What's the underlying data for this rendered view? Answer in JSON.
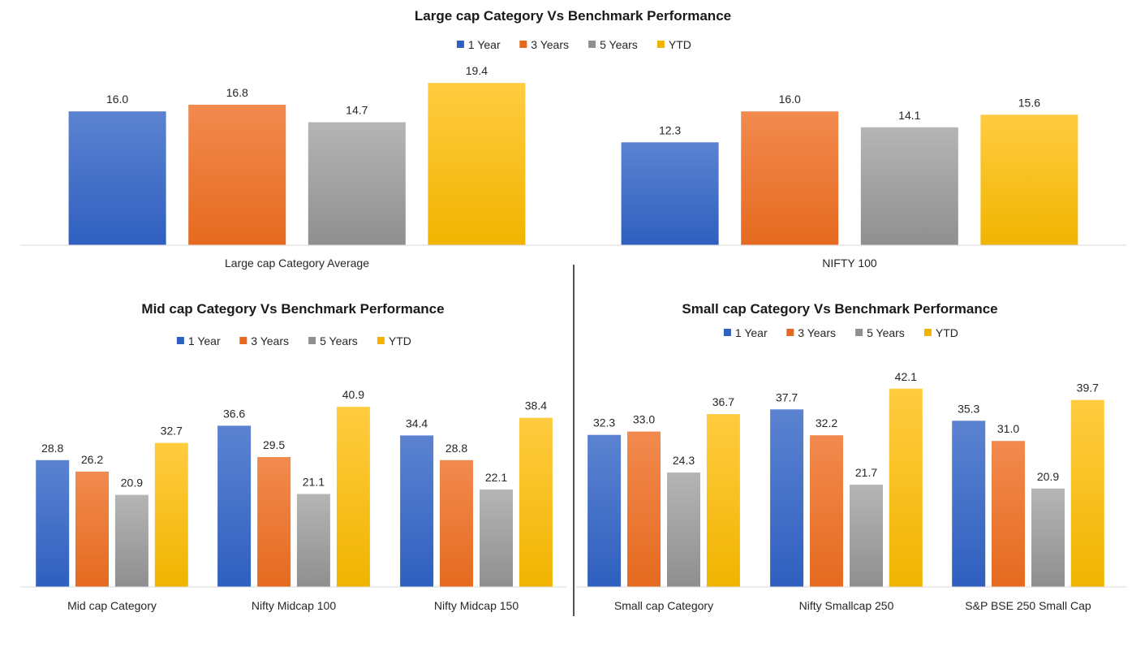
{
  "colors": {
    "1 Year": [
      "#5b83d1",
      "#2f5fbf"
    ],
    "3 Years": [
      "#f28a4f",
      "#e56a1f"
    ],
    "5 Years": [
      "#b5b5b5",
      "#8f8f8f"
    ],
    "YTD": [
      "#ffcc40",
      "#f0b400"
    ]
  },
  "chart_data": [
    {
      "type": "bar",
      "title": "Large cap Category Vs Benchmark Performance",
      "categories": [
        "Large cap Category Average",
        "NIFTY 100"
      ],
      "series": [
        {
          "name": "1 Year",
          "values": [
            16.0,
            12.3
          ]
        },
        {
          "name": "3 Years",
          "values": [
            16.8,
            16.0
          ]
        },
        {
          "name": "5 Years",
          "values": [
            14.7,
            14.1
          ]
        },
        {
          "name": "YTD",
          "values": [
            19.4,
            15.6
          ]
        }
      ],
      "legend": "top",
      "grid": false
    },
    {
      "type": "bar",
      "title": "Mid cap Category Vs Benchmark Performance",
      "categories": [
        "Mid cap Category",
        "Nifty Midcap 100",
        "Nifty Midcap 150"
      ],
      "series": [
        {
          "name": "1 Year",
          "values": [
            28.8,
            36.6,
            34.4
          ]
        },
        {
          "name": "3 Years",
          "values": [
            26.2,
            29.5,
            28.8
          ]
        },
        {
          "name": "5 Years",
          "values": [
            20.9,
            21.1,
            22.1
          ]
        },
        {
          "name": "YTD",
          "values": [
            32.7,
            40.9,
            38.4
          ]
        }
      ],
      "legend": "top",
      "grid": false
    },
    {
      "type": "bar",
      "title": "Small cap Category Vs Benchmark Performance",
      "categories": [
        "Small cap Category",
        "Nifty Smallcap 250",
        "S&P BSE 250 Small Cap"
      ],
      "series": [
        {
          "name": "1 Year",
          "values": [
            32.3,
            37.7,
            35.3
          ]
        },
        {
          "name": "3 Years",
          "values": [
            33.0,
            32.2,
            31.0
          ]
        },
        {
          "name": "5 Years",
          "values": [
            24.3,
            21.7,
            20.9
          ]
        },
        {
          "name": "YTD",
          "values": [
            36.7,
            42.1,
            39.7
          ]
        }
      ],
      "legend": "top",
      "grid": false
    }
  ]
}
